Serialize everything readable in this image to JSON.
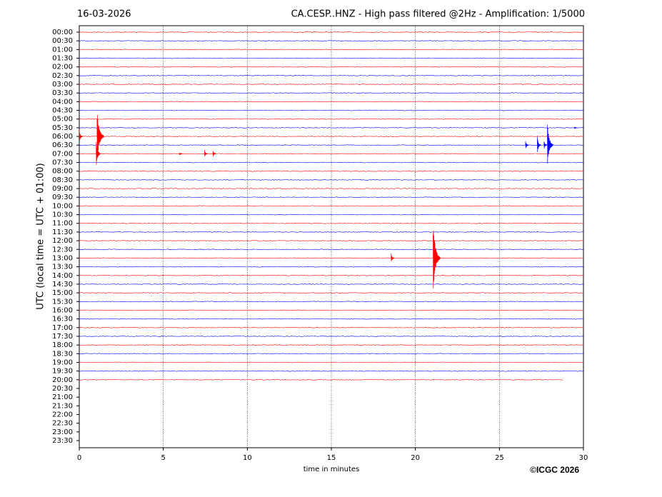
{
  "chart_data": {
    "type": "helicorder",
    "date": "16-03-2026",
    "title": "CA.CESP..HNZ - High pass filtered @2Hz - Amplification: 1/5000",
    "y_label": "UTC (local time = UTC + 01:00)",
    "x_label": "time in minutes",
    "copyright": "©ICGC 2026",
    "categories": [
      "00:00",
      "00:30",
      "01:00",
      "01:30",
      "02:00",
      "02:30",
      "03:00",
      "03:30",
      "04:00",
      "04:30",
      "05:00",
      "05:30",
      "06:00",
      "06:30",
      "07:00",
      "07:30",
      "08:00",
      "08:30",
      "09:00",
      "09:30",
      "10:00",
      "10:30",
      "11:00",
      "11:30",
      "12:00",
      "12:30",
      "13:00",
      "13:30",
      "14:00",
      "14:30",
      "15:00",
      "15:30",
      "16:00",
      "16:30",
      "17:00",
      "17:30",
      "18:00",
      "18:30",
      "19:00",
      "19:30",
      "20:00",
      "20:30",
      "21:00",
      "21:30",
      "22:00",
      "22:30",
      "23:00",
      "23:30"
    ],
    "trace_colors": [
      "#ff0000",
      "#0000ff"
    ],
    "trace_ends": [
      30,
      30,
      30,
      30,
      30,
      30,
      30,
      30,
      30,
      30,
      30,
      30,
      30,
      30,
      30,
      30,
      30,
      30,
      30,
      30,
      30,
      30,
      30,
      30,
      30,
      30,
      30,
      30,
      30,
      30,
      30,
      30,
      30,
      30,
      30,
      30,
      30,
      30,
      30,
      30,
      28.8
    ],
    "events": [
      {
        "row": 12,
        "x": 1.1,
        "amplitude": 3.2
      },
      {
        "row": 12,
        "x": 0.05,
        "amplitude": 0.8
      },
      {
        "row": 14,
        "x": 1.05,
        "amplitude": 1.5
      },
      {
        "row": 14,
        "x": 6.0,
        "amplitude": 0.2
      },
      {
        "row": 14,
        "x": 7.5,
        "amplitude": 0.5
      },
      {
        "row": 14,
        "x": 8.0,
        "amplitude": 0.4
      },
      {
        "row": 13,
        "x": 26.6,
        "amplitude": 0.5
      },
      {
        "row": 13,
        "x": 27.3,
        "amplitude": 1.0
      },
      {
        "row": 13,
        "x": 27.7,
        "amplitude": 0.5
      },
      {
        "row": 13,
        "x": 27.9,
        "amplitude": 2.5
      },
      {
        "row": 26,
        "x": 18.6,
        "amplitude": 0.6
      },
      {
        "row": 26,
        "x": 21.1,
        "amplitude": 4.0
      },
      {
        "row": 11,
        "x": 29.5,
        "amplitude": 0.1
      }
    ],
    "xlim": [
      0,
      30
    ],
    "xticks": [
      0,
      5,
      10,
      15,
      20,
      25,
      30
    ],
    "grid": true
  }
}
